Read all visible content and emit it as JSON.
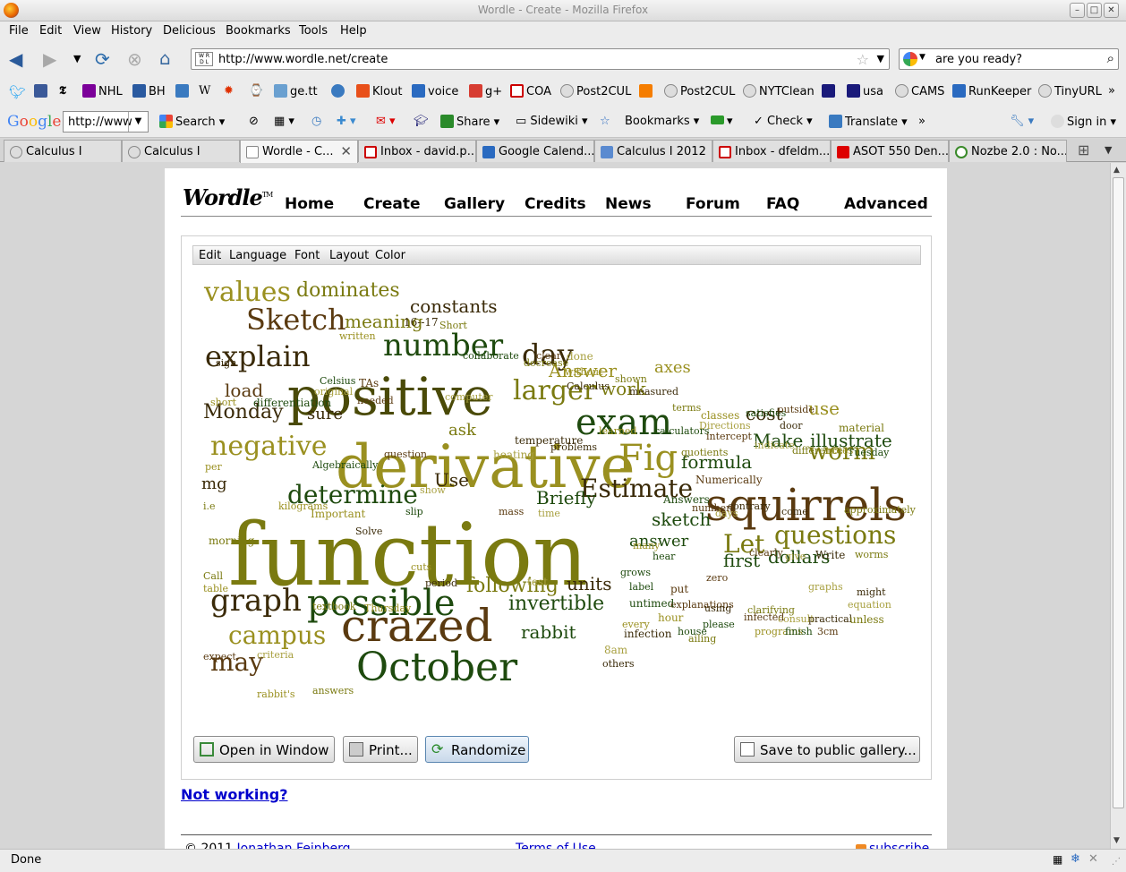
{
  "window": {
    "title": "Wordle - Create - Mozilla Firefox"
  },
  "menubar": [
    "File",
    "Edit",
    "View",
    "History",
    "Delicious",
    "Bookmarks",
    "Tools",
    "Help"
  ],
  "navbar": {
    "url": "http://www.wordle.net/create",
    "search_value": "are you ready?"
  },
  "bookmarks": [
    "NHL",
    "BH",
    "ge.tt",
    "Klout",
    "voice",
    "g+",
    "COA",
    "Post2CUL",
    "Post2CUL",
    "NYTClean",
    "usa",
    "CAMS",
    "RunKeeper",
    "TinyURL"
  ],
  "googlebar": {
    "logo": "Google",
    "input": "http://www",
    "search": "Search",
    "share": "Share",
    "sidewiki": "Sidewiki",
    "bookmarks": "Bookmarks",
    "check": "Check",
    "translate": "Translate",
    "signin": "Sign in"
  },
  "tabs": [
    "Calculus I",
    "Calculus I",
    "Wordle - C...",
    "Inbox - david.p...",
    "Google Calend...",
    "Calculus I 2012",
    "Inbox - dfeldm...",
    "ASOT 550 Den...",
    "Nozbe 2.0 : No..."
  ],
  "wordle": {
    "logo": "Wordle",
    "tm": "TM",
    "nav": [
      "Home",
      "Create",
      "Gallery",
      "Credits",
      "News",
      "Forum",
      "FAQ",
      "Advanced"
    ],
    "menu": [
      "Edit",
      "Language",
      "Font",
      "Layout",
      "Color"
    ],
    "buttons": {
      "open": "Open in Window",
      "print": "Print...",
      "randomize": "Randomize",
      "save": "Save to public gallery..."
    },
    "not_working": "Not working?",
    "footer": {
      "copyright": "© 2011",
      "author": "Jonathan Feinberg",
      "terms": "Terms of Use",
      "subscribe": "subscribe"
    }
  },
  "colors": {
    "olive": "#7a7a10",
    "dark_olive": "#4a4a08",
    "brown": "#5a3a10",
    "dark_green": "#1e4a0e",
    "green": "#3a6a10",
    "gold": "#9a9020",
    "light": "#a8a040",
    "dark": "#3a2a08"
  },
  "words": [
    [
      "function",
      96,
      "olive"
    ],
    [
      "derivative",
      66,
      "gold"
    ],
    [
      "positive",
      58,
      "dark_olive"
    ],
    [
      "squirrels",
      50,
      "brown"
    ],
    [
      "crazed",
      50,
      "brown"
    ],
    [
      "October",
      44,
      "dark_green"
    ],
    [
      "exam",
      40,
      "dark_green"
    ],
    [
      "possible",
      40,
      "dark_green"
    ],
    [
      "Fig",
      40,
      "gold"
    ],
    [
      "number",
      34,
      "dark_green"
    ],
    [
      "values",
      30,
      "gold"
    ],
    [
      "negative",
      30,
      "gold"
    ],
    [
      "explain",
      32,
      "dark"
    ],
    [
      "Sketch",
      32,
      "brown"
    ],
    [
      "graph",
      34,
      "dark"
    ],
    [
      "day",
      32,
      "dark"
    ],
    [
      "larger",
      30,
      "olive"
    ],
    [
      "Estimate",
      28,
      "dark"
    ],
    [
      "questions",
      28,
      "olive"
    ],
    [
      "determine",
      28,
      "dark_green"
    ],
    [
      "campus",
      28,
      "gold"
    ],
    [
      "may",
      28,
      "brown"
    ],
    [
      "worm",
      26,
      "olive"
    ],
    [
      "Let",
      28,
      "olive"
    ],
    [
      "dominates",
      22,
      "olive"
    ],
    [
      "meaning",
      20,
      "olive"
    ],
    [
      "constants",
      20,
      "dark"
    ],
    [
      "Monday",
      22,
      "dark"
    ],
    [
      "following",
      22,
      "olive"
    ],
    [
      "invertible",
      22,
      "dark_green"
    ],
    [
      "rabbit",
      20,
      "dark_green"
    ],
    [
      "units",
      20,
      "dark"
    ],
    [
      "Answer",
      20,
      "gold"
    ],
    [
      "work",
      20,
      "olive"
    ],
    [
      "Make",
      20,
      "dark_green"
    ],
    [
      "illustrate",
      20,
      "dark_green"
    ],
    [
      "formula",
      20,
      "dark_green"
    ],
    [
      "cost",
      20,
      "dark"
    ],
    [
      "use",
      20,
      "gold"
    ],
    [
      "dollars",
      20,
      "dark_green"
    ],
    [
      "first",
      20,
      "dark_green"
    ],
    [
      "sketch",
      20,
      "dark_green"
    ],
    [
      "answer",
      18,
      "dark_green"
    ],
    [
      "axes",
      18,
      "gold"
    ],
    [
      "Briefly",
      20,
      "dark_green"
    ],
    [
      "Use",
      20,
      "dark"
    ],
    [
      "load",
      20,
      "brown"
    ],
    [
      "sure",
      18,
      "dark"
    ],
    [
      "ask",
      18,
      "olive"
    ],
    [
      "mg",
      18,
      "dark"
    ]
  ],
  "small_words": [
    "16--17",
    "Short",
    "written",
    "collaborate",
    "clear",
    "done",
    "sign",
    "decrease",
    "without",
    "Celsius",
    "TAs",
    "original",
    "Calculus",
    "shown",
    "short",
    "differentiation",
    "needed",
    "computer",
    "measured",
    "terms",
    "classes",
    "satisfies",
    "outside",
    "Directions",
    "door",
    "material",
    "learned",
    "calculators",
    "intercept",
    "indicate",
    "temperature",
    "difference",
    "notes",
    "Tuesday",
    "question",
    "heating",
    "problems",
    "quotients",
    "per",
    "Algebraically",
    "Numerically",
    "show",
    "contrary",
    "i.e",
    "kilograms",
    "Answers",
    "numbers",
    "days",
    "come",
    "approximately",
    "Important",
    "slip",
    "mass",
    "time",
    "Solve",
    "morning",
    "many",
    "hear",
    "clearly",
    "give",
    "Write",
    "worms",
    "cuts",
    "grows",
    "zero",
    "test",
    "period",
    "Call",
    "table",
    "label",
    "put",
    "graphs",
    "might",
    "textbook",
    "Thursday",
    "untimed",
    "explanations",
    "equation",
    "using",
    "clarifying",
    "hour",
    "please",
    "infected",
    "consult",
    "practical",
    "unless",
    "every",
    "house",
    "expect",
    "criteria",
    "infection",
    "ailing",
    "programs",
    "finish",
    "3cm",
    "8am",
    "others",
    "answers",
    "rabbit's"
  ]
}
